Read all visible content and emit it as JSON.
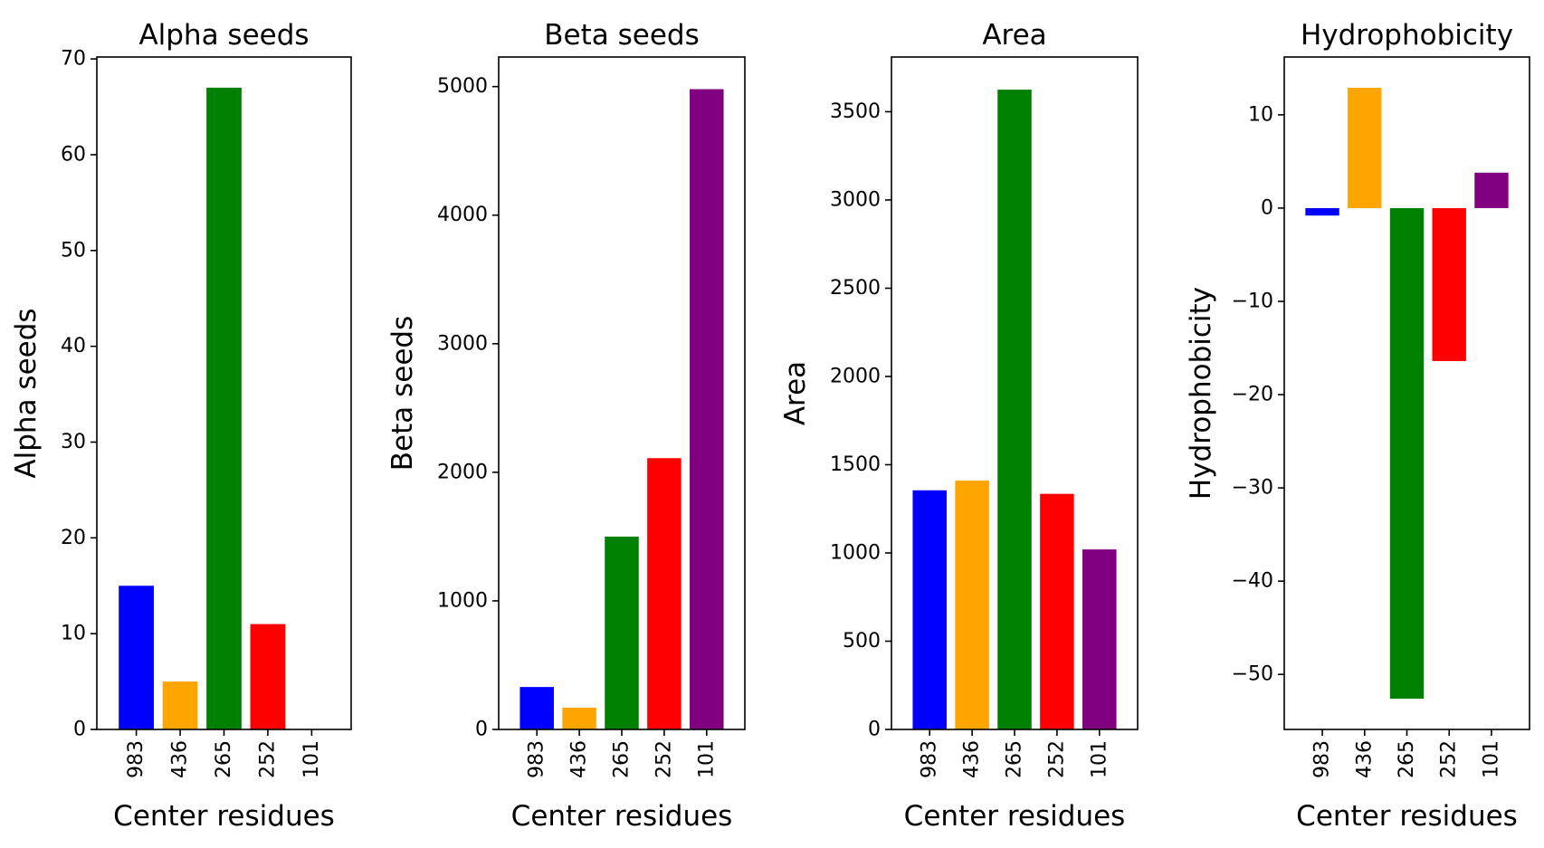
{
  "figure": {
    "background": "#ffffff"
  },
  "chart_data": [
    {
      "type": "bar",
      "title": "Alpha seeds",
      "xlabel": "Center residues",
      "ylabel": "Alpha seeds",
      "categories": [
        "983",
        "436",
        "265",
        "252",
        "101"
      ],
      "values": [
        15,
        5,
        67,
        11,
        0
      ],
      "colors": [
        "#0000ff",
        "#ffa500",
        "#008000",
        "#ff0000",
        "#800080"
      ],
      "ylim": [
        0,
        70.2
      ],
      "yticks": [
        0,
        10,
        20,
        30,
        40,
        50,
        60,
        70
      ],
      "ytick_labels": [
        "0",
        "10",
        "20",
        "30",
        "40",
        "50",
        "60",
        "70"
      ],
      "grid": false,
      "legend": false
    },
    {
      "type": "bar",
      "title": "Beta seeds",
      "xlabel": "Center residues",
      "ylabel": "Beta seeds",
      "categories": [
        "983",
        "436",
        "265",
        "252",
        "101"
      ],
      "values": [
        330,
        170,
        1500,
        2110,
        4980
      ],
      "colors": [
        "#0000ff",
        "#ffa500",
        "#008000",
        "#ff0000",
        "#800080"
      ],
      "ylim": [
        0,
        5230
      ],
      "yticks": [
        0,
        1000,
        2000,
        3000,
        4000,
        5000
      ],
      "ytick_labels": [
        "0",
        "1000",
        "2000",
        "3000",
        "4000",
        "5000"
      ],
      "grid": false,
      "legend": false
    },
    {
      "type": "bar",
      "title": "Area",
      "xlabel": "Center residues",
      "ylabel": "Area",
      "categories": [
        "983",
        "436",
        "265",
        "252",
        "101"
      ],
      "values": [
        1355,
        1410,
        3625,
        1335,
        1020
      ],
      "colors": [
        "#0000ff",
        "#ffa500",
        "#008000",
        "#ff0000",
        "#800080"
      ],
      "ylim": [
        0,
        3810
      ],
      "yticks": [
        0,
        500,
        1000,
        1500,
        2000,
        2500,
        3000,
        3500
      ],
      "ytick_labels": [
        "0",
        "500",
        "1000",
        "1500",
        "2000",
        "2500",
        "3000",
        "3500"
      ],
      "grid": false,
      "legend": false
    },
    {
      "type": "bar",
      "title": "Hydrophobicity",
      "xlabel": "Center residues",
      "ylabel": "Hydrophobicity",
      "categories": [
        "983",
        "436",
        "265",
        "252",
        "101"
      ],
      "values": [
        -0.8,
        12.9,
        -52.6,
        -16.4,
        3.8
      ],
      "colors": [
        "#0000ff",
        "#ffa500",
        "#008000",
        "#ff0000",
        "#800080"
      ],
      "ylim": [
        -55.9,
        16.2
      ],
      "yticks": [
        -50,
        -40,
        -30,
        -20,
        -10,
        0,
        10
      ],
      "ytick_labels": [
        "−50",
        "−40",
        "−30",
        "−20",
        "−10",
        "0",
        "10"
      ],
      "grid": false,
      "legend": false
    }
  ]
}
